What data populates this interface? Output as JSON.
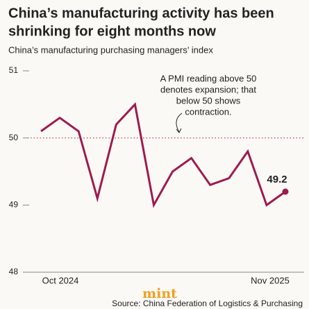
{
  "chart_data": {
    "type": "line",
    "title": [
      "China’s manufacturing activity has been",
      "shrinking for eight months now"
    ],
    "subtitle": "China’s manufacturing purchasing managers’ index",
    "categories": [
      "Oct 2024",
      null,
      null,
      null,
      null,
      null,
      null,
      null,
      null,
      null,
      null,
      null,
      null,
      "Nov 2025"
    ],
    "series": [
      {
        "color": "#9e1a4f",
        "values": [
          50.1,
          50.3,
          50.1,
          49.1,
          50.2,
          50.5,
          49.0,
          49.5,
          49.7,
          49.3,
          49.4,
          49.8,
          49.0,
          49.2
        ]
      }
    ],
    "ylim": [
      48,
      51
    ],
    "yticks": [
      48,
      49,
      50,
      51
    ],
    "reference_line": 50,
    "annotation": [
      "A PMI reading above 50",
      "denotes expansion; that",
      "below 50 shows",
      "contraction."
    ],
    "brand": "mint",
    "source": "Source: China Federation of Logistics & Purchasing"
  }
}
